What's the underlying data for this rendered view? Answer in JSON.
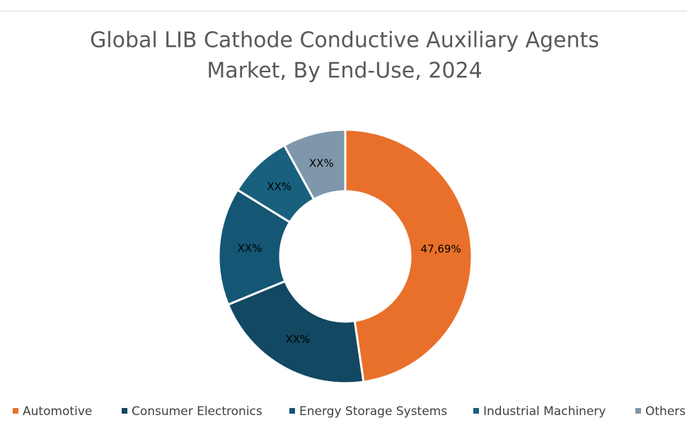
{
  "chart_data": {
    "type": "donut",
    "title": "Global LIB Cathode Conductive Auxiliary Agents",
    "subtitle": "Market, By End-Use, 2024",
    "categories": [
      "Automotive",
      "Consumer Electronics",
      "Energy Storage Systems",
      "Industrial Machinery",
      "Others"
    ],
    "values": [
      47.69,
      21.1,
      15,
      8.2,
      8
    ],
    "value_labels": [
      "47,69%",
      "XX%",
      "XX%",
      "XX%",
      "XX%"
    ],
    "colors": [
      "#e8702a",
      "#124862",
      "#145674",
      "#19607f",
      "#7f97aa"
    ],
    "legend": "bottom"
  }
}
